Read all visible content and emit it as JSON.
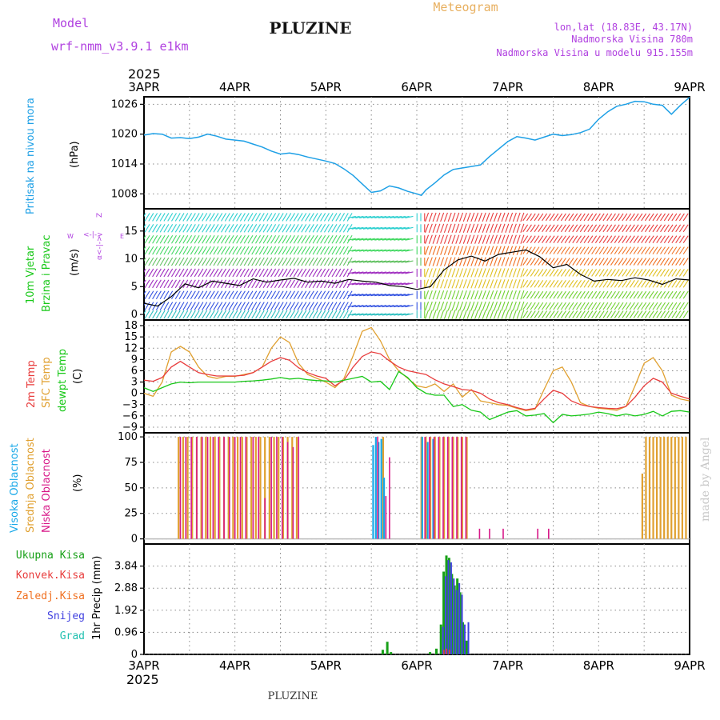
{
  "header": {
    "model_label": "Model",
    "model_name": "wrf-nmm_v3.9.1 e1km",
    "station_title": "PLUZINE",
    "product": "Meteogram",
    "lonlat": "lon,lat (18.83E, 43.17N)",
    "altitude": "Nadmorska Visina 780m",
    "model_altitude": "Nadmorska Visina u modelu 915.155m",
    "footer_station": "PLUZINE",
    "credit": "made by Angel"
  },
  "time_axis": {
    "year": "2025",
    "ticks": [
      "3APR",
      "4APR",
      "5APR",
      "6APR",
      "7APR",
      "8APR",
      "9APR"
    ],
    "start_day": 3,
    "end_day": 9
  },
  "colors": {
    "pressure": "#1ea0e6",
    "wind_speed": "#000000",
    "temp_2m": "#e83c3c",
    "temp_sfc": "#e0a030",
    "dewpoint": "#18c818",
    "cloud_high": "#18a8e8",
    "cloud_mid": "#e0a030",
    "cloud_low": "#d81888",
    "precip_total": "#18a018",
    "precip_conv": "#e83c3c",
    "precip_frozen": "#f07020",
    "precip_snow": "#4040e0",
    "precip_graupel": "#20c0b0",
    "label_purple": "#b040e0",
    "label_orange": "#e8b060"
  },
  "panels": {
    "pressure": {
      "label_color_line": "Pritisak na nivou mora",
      "unit": "(hPa)",
      "yticks": [
        "1008",
        "1014",
        "1020",
        "1026"
      ]
    },
    "wind": {
      "label_line1": "10m Vjetar",
      "label_line2": "Brzina i Pravac",
      "unit": "(m/s)",
      "yticks": [
        "0",
        "5",
        "10",
        "15"
      ],
      "legend_w": "W",
      "legend_e": "E",
      "legend_mid": "<-|->",
      "legend_bottom": "α<-|->",
      "legend_top": "Z"
    },
    "temperature": {
      "label_2m": "2m Temp",
      "label_sfc": "SFC Temp",
      "label_dew": "dewpt Temp",
      "unit": "(C)",
      "yticks": [
        "18",
        "15",
        "12",
        "9",
        "6",
        "3",
        "0",
        "−3",
        "−6",
        "−9"
      ]
    },
    "clouds": {
      "label_high": "Visoka Oblacnost",
      "label_mid": "Srednja Oblacnost",
      "label_low": "Niska Oblacnost",
      "unit": "(%)",
      "yticks": [
        "100",
        "75",
        "50",
        "25",
        "0"
      ]
    },
    "precip": {
      "legend_total": "Ukupna Kisa",
      "legend_conv": "Konvek.Kisa",
      "legend_frozen": "Zaledj.Kisa",
      "legend_snow": "Snijeg",
      "legend_graupel": "Grad",
      "unit": "1hr Precip (mm)",
      "yticks": [
        "3.84",
        "2.88",
        "1.92",
        "0.96",
        "0"
      ]
    }
  },
  "chart_data": [
    {
      "type": "line",
      "title": "",
      "ylabel": "Pritisak na nivou mora (hPa)",
      "ylim": [
        1005,
        1027.5
      ],
      "grid": true,
      "x": [
        3.0,
        3.1,
        3.2,
        3.3,
        3.4,
        3.5,
        3.6,
        3.7,
        3.8,
        3.9,
        4.0,
        4.1,
        4.2,
        4.3,
        4.4,
        4.5,
        4.6,
        4.7,
        4.8,
        4.9,
        5.0,
        5.1,
        5.2,
        5.3,
        5.4,
        5.5,
        5.6,
        5.7,
        5.8,
        5.9,
        6.0,
        6.05,
        6.1,
        6.2,
        6.3,
        6.4,
        6.5,
        6.6,
        6.7,
        6.8,
        6.9,
        7.0,
        7.1,
        7.2,
        7.3,
        7.4,
        7.5,
        7.6,
        7.7,
        7.8,
        7.9,
        8.0,
        8.1,
        8.2,
        8.3,
        8.4,
        8.5,
        8.6,
        8.7,
        8.8,
        8.9,
        9.0
      ],
      "series": [
        {
          "name": "Pritisak na nivou mora",
          "values": [
            1019.8,
            1020.1,
            1020.0,
            1019.2,
            1019.3,
            1019.1,
            1019.4,
            1020.0,
            1019.6,
            1019.0,
            1018.8,
            1018.6,
            1018.0,
            1017.4,
            1016.6,
            1016.0,
            1016.2,
            1015.9,
            1015.4,
            1015.0,
            1014.6,
            1014.1,
            1013.0,
            1011.7,
            1010.0,
            1008.3,
            1008.6,
            1009.6,
            1009.2,
            1008.5,
            1008.0,
            1007.7,
            1008.8,
            1010.2,
            1011.8,
            1012.9,
            1013.2,
            1013.5,
            1013.8,
            1015.5,
            1017.0,
            1018.5,
            1019.5,
            1019.2,
            1018.8,
            1019.4,
            1020.0,
            1019.7,
            1019.9,
            1020.3,
            1021.0,
            1023.0,
            1024.5,
            1025.6,
            1026.0,
            1026.6,
            1026.5,
            1026.0,
            1025.8,
            1024.0,
            1025.8,
            1027.4
          ]
        }
      ]
    },
    {
      "type": "line",
      "title": "",
      "ylabel": "10m Vjetar Brzina i Pravac (m/s)",
      "ylim": [
        -1,
        19
      ],
      "grid": true,
      "x": [
        3.0,
        3.15,
        3.3,
        3.45,
        3.6,
        3.75,
        3.9,
        4.05,
        4.2,
        4.35,
        4.5,
        4.65,
        4.8,
        4.95,
        5.1,
        5.25,
        5.4,
        5.55,
        5.7,
        5.85,
        6.0,
        6.15,
        6.3,
        6.45,
        6.6,
        6.75,
        6.9,
        7.05,
        7.2,
        7.35,
        7.5,
        7.65,
        7.8,
        7.95,
        8.1,
        8.25,
        8.4,
        8.55,
        8.7,
        8.85,
        9.0
      ],
      "series": [
        {
          "name": "Brzina",
          "values": [
            2.0,
            1.5,
            3.2,
            5.5,
            4.8,
            6.0,
            5.6,
            5.2,
            6.4,
            5.8,
            6.2,
            6.5,
            5.8,
            6.0,
            5.6,
            6.3,
            6.0,
            5.8,
            5.2,
            5.0,
            4.5,
            5.0,
            8.0,
            9.8,
            10.5,
            9.6,
            10.8,
            11.2,
            11.6,
            10.4,
            8.4,
            9.0,
            7.2,
            6.0,
            6.3,
            6.1,
            6.6,
            6.2,
            5.4,
            6.4,
            6.2
          ]
        }
      ]
    },
    {
      "type": "line",
      "title": "",
      "ylabel": "(C)",
      "ylim": [
        -10.5,
        19.5
      ],
      "grid": true,
      "x": [
        3.0,
        3.1,
        3.2,
        3.3,
        3.4,
        3.5,
        3.6,
        3.7,
        3.8,
        3.9,
        4.0,
        4.1,
        4.2,
        4.3,
        4.4,
        4.5,
        4.6,
        4.7,
        4.8,
        4.9,
        5.0,
        5.1,
        5.2,
        5.3,
        5.4,
        5.5,
        5.6,
        5.7,
        5.8,
        5.9,
        6.0,
        6.1,
        6.2,
        6.3,
        6.4,
        6.5,
        6.6,
        6.7,
        6.8,
        6.9,
        7.0,
        7.1,
        7.2,
        7.3,
        7.4,
        7.5,
        7.6,
        7.7,
        7.8,
        7.9,
        8.0,
        8.1,
        8.2,
        8.3,
        8.4,
        8.5,
        8.6,
        8.7,
        8.8,
        8.9,
        9.0
      ],
      "series": [
        {
          "name": "2m Temp",
          "values": [
            3.5,
            3.2,
            4.2,
            7.0,
            8.5,
            7.0,
            5.5,
            5.0,
            4.6,
            4.6,
            4.6,
            4.8,
            5.5,
            7.0,
            8.5,
            9.5,
            8.8,
            6.8,
            5.5,
            4.6,
            4.0,
            2.0,
            3.5,
            7.0,
            9.8,
            11.0,
            10.5,
            8.6,
            7.0,
            6.0,
            5.5,
            5.0,
            3.6,
            2.5,
            1.8,
            1.0,
            0.8,
            0.0,
            -1.5,
            -2.5,
            -3.0,
            -3.8,
            -4.4,
            -4.0,
            -1.5,
            0.8,
            0.0,
            -2.0,
            -3.0,
            -3.5,
            -3.8,
            -4.0,
            -4.1,
            -3.5,
            -1.0,
            2.0,
            4.0,
            3.0,
            0.0,
            -0.8,
            -1.5
          ]
        },
        {
          "name": "SFC Temp",
          "values": [
            0.0,
            -0.8,
            3.0,
            11.0,
            12.5,
            11.0,
            7.0,
            4.5,
            4.0,
            4.5,
            4.5,
            5.0,
            5.5,
            7.0,
            12.0,
            15.0,
            13.5,
            8.0,
            5.0,
            4.0,
            3.0,
            1.5,
            4.0,
            10.0,
            16.5,
            17.5,
            14.0,
            9.0,
            6.0,
            4.0,
            2.0,
            1.5,
            2.5,
            0.5,
            2.5,
            -1.0,
            1.0,
            -2.0,
            -2.5,
            -3.0,
            -3.2,
            -4.0,
            -4.6,
            -4.2,
            1.0,
            6.0,
            7.0,
            3.0,
            -2.5,
            -3.5,
            -4.0,
            -4.2,
            -4.5,
            -3.5,
            2.0,
            8.0,
            9.5,
            6.0,
            -0.5,
            -1.5,
            -2.0
          ]
        },
        {
          "name": "dewpt Temp",
          "values": [
            1.5,
            0.5,
            1.5,
            2.5,
            3.0,
            2.8,
            3.0,
            3.0,
            3.0,
            3.0,
            3.0,
            3.2,
            3.3,
            3.5,
            3.8,
            4.2,
            3.8,
            4.0,
            3.6,
            3.4,
            3.3,
            3.0,
            3.5,
            4.0,
            4.5,
            3.0,
            3.2,
            1.0,
            5.8,
            4.2,
            1.5,
            0.0,
            -0.5,
            -0.5,
            -3.5,
            -3.0,
            -4.5,
            -5.0,
            -7.0,
            -6.0,
            -5.0,
            -4.6,
            -6.0,
            -5.8,
            -5.4,
            -7.8,
            -5.6,
            -6.0,
            -5.8,
            -5.5,
            -5.0,
            -5.4,
            -6.0,
            -5.5,
            -6.0,
            -5.6,
            -4.8,
            -6.0,
            -4.8,
            -4.6,
            -5.0
          ]
        }
      ]
    },
    {
      "type": "bar",
      "title": "",
      "ylabel": "(%)",
      "ylim": [
        0,
        100
      ],
      "series": [
        {
          "name": "Visoka Oblacnost",
          "x": [
            5.52,
            5.55,
            5.58,
            5.61,
            5.64,
            6.06,
            6.12,
            6.18
          ],
          "values": [
            92,
            100,
            95,
            98,
            60,
            100,
            95,
            98
          ]
        },
        {
          "name": "Srednja Oblacnost",
          "x": [
            3.38,
            3.43,
            3.48,
            3.53,
            3.58,
            3.63,
            3.68,
            3.73,
            3.78,
            3.83,
            3.88,
            3.93,
            3.98,
            4.03,
            4.08,
            4.13,
            4.18,
            4.23,
            4.28,
            4.33,
            4.38,
            4.43,
            4.48,
            4.53,
            4.58,
            4.63,
            4.68,
            5.63,
            6.05,
            6.1,
            6.15,
            6.2,
            6.25,
            6.3,
            6.35,
            6.4,
            6.45,
            6.5,
            6.55,
            8.48,
            8.52,
            8.56,
            8.6,
            8.64,
            8.68,
            8.72,
            8.76,
            8.8,
            8.84,
            8.88,
            8.92,
            8.96
          ],
          "values": [
            100,
            100,
            100,
            100,
            100,
            100,
            100,
            100,
            100,
            100,
            100,
            100,
            100,
            100,
            100,
            100,
            100,
            100,
            100,
            100,
            100,
            100,
            100,
            100,
            100,
            100,
            100,
            100,
            100,
            100,
            100,
            100,
            100,
            100,
            100,
            100,
            100,
            100,
            100,
            64,
            100,
            100,
            100,
            100,
            100,
            100,
            100,
            100,
            100,
            100,
            100,
            100
          ]
        },
        {
          "name": "Niska Oblacnost",
          "x": [
            3.4,
            3.46,
            3.52,
            3.58,
            3.64,
            3.7,
            3.76,
            3.82,
            3.88,
            3.94,
            4.0,
            4.06,
            4.12,
            4.2,
            4.26,
            4.33,
            4.4,
            4.46,
            4.52,
            4.58,
            4.64,
            4.7,
            5.57,
            5.66,
            5.7,
            5.74,
            6.09,
            6.14,
            6.19,
            6.24,
            6.29,
            6.34,
            6.39,
            6.44,
            6.49,
            6.54,
            6.69,
            6.8,
            6.95,
            7.33,
            7.45
          ],
          "values": [
            100,
            100,
            100,
            100,
            100,
            100,
            100,
            100,
            100,
            100,
            100,
            100,
            100,
            100,
            100,
            40,
            100,
            100,
            100,
            95,
            90,
            100,
            100,
            42,
            80,
            0,
            100,
            100,
            100,
            100,
            100,
            100,
            100,
            100,
            100,
            100,
            10,
            10,
            10,
            10,
            10
          ]
        }
      ]
    },
    {
      "type": "bar",
      "title": "",
      "ylabel": "1hr Precip (mm)",
      "ylim": [
        0,
        4.8
      ],
      "series": [
        {
          "name": "Ukupna Kisa",
          "x": [
            5.63,
            5.68,
            5.72,
            6.15,
            6.22,
            6.27,
            6.3,
            6.33,
            6.36,
            6.39,
            6.42,
            6.45,
            6.48,
            6.51,
            6.55
          ],
          "values": [
            0.2,
            0.55,
            0.1,
            0.1,
            0.25,
            1.3,
            3.6,
            4.3,
            4.2,
            3.5,
            3.0,
            3.3,
            2.7,
            1.4,
            0.6
          ]
        },
        {
          "name": "Konvek.Kisa",
          "x": [
            6.3,
            6.33,
            6.36
          ],
          "values": [
            0.2,
            0.25,
            0.2
          ]
        },
        {
          "name": "Snijeg",
          "x": [
            6.27,
            6.3,
            6.33,
            6.36,
            6.39,
            6.42,
            6.45,
            6.48,
            6.51,
            6.55
          ],
          "values": [
            1.2,
            3.4,
            4.1,
            4.0,
            3.3,
            2.8,
            3.1,
            2.6,
            1.3,
            1.4
          ]
        }
      ]
    }
  ]
}
